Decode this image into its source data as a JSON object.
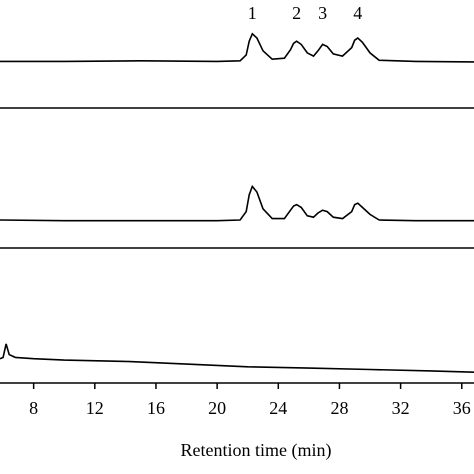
{
  "chart_data": [
    {
      "type": "line",
      "xlim": [
        5.8,
        36.8
      ],
      "ylim": [
        0,
        100
      ],
      "annotations": [
        {
          "text": "1",
          "x": 22.3
        },
        {
          "text": "2",
          "x": 25.2
        },
        {
          "text": "3",
          "x": 26.9
        },
        {
          "text": "4",
          "x": 29.2
        }
      ],
      "series": [
        {
          "color": "#000000",
          "x": [
            5.8,
            10,
            15,
            20,
            21.5,
            21.9,
            22.1,
            22.3,
            22.6,
            23.0,
            23.6,
            24.4,
            24.8,
            25.0,
            25.2,
            25.5,
            25.9,
            26.3,
            26.6,
            26.9,
            27.2,
            27.6,
            28.2,
            28.8,
            29.0,
            29.2,
            29.5,
            30.0,
            30.6,
            33,
            36.8
          ],
          "values": [
            44,
            44,
            44.5,
            44,
            44.5,
            50,
            63,
            70,
            66,
            54,
            46,
            47,
            55,
            61,
            63,
            60,
            52,
            49,
            54,
            60,
            58,
            51,
            49,
            57,
            64,
            66,
            62,
            52,
            45,
            44,
            43.5
          ]
        }
      ]
    },
    {
      "type": "line",
      "xlim": [
        5.8,
        36.8
      ],
      "ylim": [
        0,
        100
      ],
      "series": [
        {
          "color": "#000000",
          "x": [
            5.8,
            10,
            15,
            20,
            21.5,
            21.9,
            22.1,
            22.3,
            22.6,
            23.0,
            23.6,
            24.4,
            24.8,
            25.0,
            25.2,
            25.5,
            25.9,
            26.3,
            26.6,
            26.9,
            27.2,
            27.6,
            28.2,
            28.8,
            29.0,
            29.2,
            29.5,
            30.0,
            30.6,
            33,
            36.8
          ],
          "values": [
            20,
            19.5,
            19.5,
            19.5,
            20,
            26,
            38,
            44,
            40,
            28,
            21,
            21,
            27,
            30,
            31,
            29,
            23,
            22,
            25,
            27,
            26,
            22,
            21,
            26,
            31,
            32,
            29,
            24,
            20,
            19.5,
            19.5
          ]
        }
      ]
    },
    {
      "type": "line",
      "xlim": [
        5.8,
        36.8
      ],
      "ylim": [
        0,
        100
      ],
      "xticks": [
        8,
        12,
        16,
        20,
        24,
        28,
        32,
        36
      ],
      "xlabel": "Retention time (min)",
      "series": [
        {
          "color": "#000000",
          "x": [
            5.8,
            6.0,
            6.2,
            6.4,
            6.8,
            8,
            10,
            14,
            18,
            22,
            26,
            30,
            34,
            36.8
          ],
          "values": [
            18,
            19,
            29,
            21,
            19,
            18,
            17,
            16,
            14,
            12,
            11,
            10,
            9,
            8
          ]
        }
      ]
    }
  ]
}
